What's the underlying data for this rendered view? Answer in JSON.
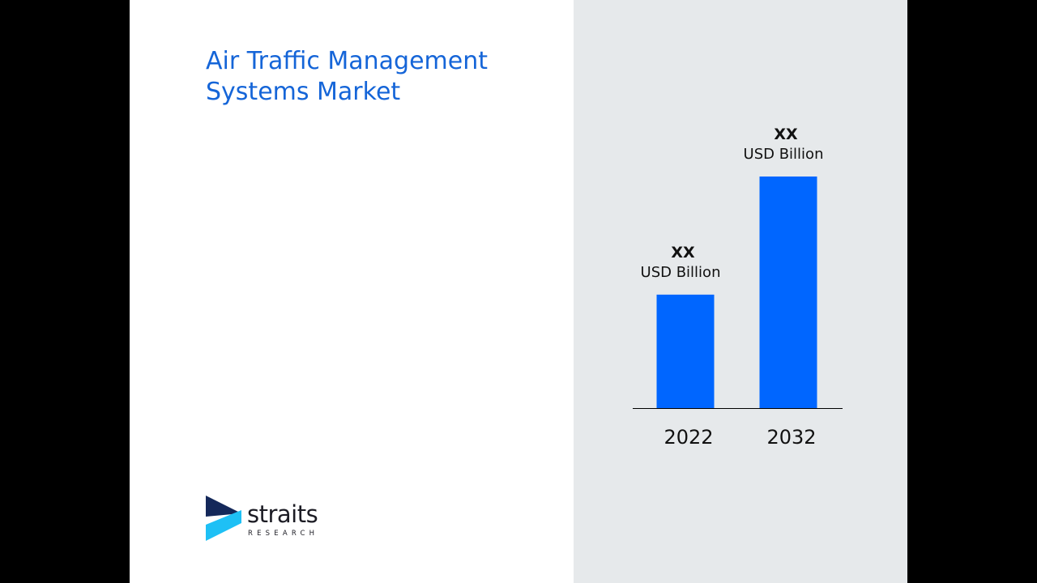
{
  "title": "Air Traffic Management\nSystems Market",
  "logo": {
    "name": "straits",
    "sub": "RESEARCH"
  },
  "colors": {
    "bar": "#0066ff",
    "title": "#1565d8",
    "panel": "#e6e9eb"
  },
  "chart_data": {
    "type": "bar",
    "categories": [
      "2022",
      "2032"
    ],
    "relative_values": [
      0.49,
      1.0
    ],
    "data_labels": [
      {
        "value": "XX",
        "unit": "USD Billion"
      },
      {
        "value": "XX",
        "unit": "USD Billion"
      }
    ],
    "grid": false,
    "legend": "none"
  }
}
